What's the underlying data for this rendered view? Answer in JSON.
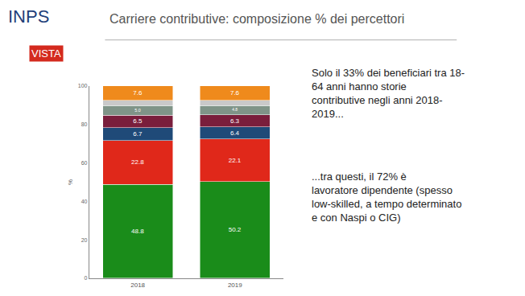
{
  "chart_data": {
    "type": "bar",
    "title": "Carriere contributive: composizione % dei percettori",
    "y_label": "%",
    "categories": [
      "2018",
      "2019"
    ],
    "stacked": true,
    "data_labels": true,
    "grid": false,
    "ylim": [
      0,
      100
    ],
    "yticks": [
      0,
      20,
      40,
      60,
      80,
      100
    ],
    "series": [
      {
        "color": "#1a8c1a",
        "values": [
          48.8,
          50.2
        ]
      },
      {
        "color": "#e0281a",
        "values": [
          22.8,
          22.1
        ]
      },
      {
        "color": "#1f4a78",
        "values": [
          6.7,
          6.4
        ]
      },
      {
        "color": "#7a1e3c",
        "values": [
          6.5,
          6.3
        ]
      },
      {
        "color": "#7f9488",
        "values": [
          5.0,
          4.8
        ],
        "value_labels": [
          "5.0",
          "4.8"
        ]
      },
      {
        "color": "#c9c9c9",
        "values": [
          2.6,
          2.6
        ]
      },
      {
        "color": "#ef8a1c",
        "values": [
          7.6,
          7.6
        ]
      }
    ],
    "annotations": [
      {
        "lines": [
          "INPS"
        ]
      },
      {
        "lines": [
          "VISTA"
        ]
      },
      {
        "lines": [
          "Solo il 33% dei beneficiari tra 18-",
          "64 anni hanno storie",
          "contributive negli anni 2018-",
          "2019..."
        ]
      },
      {
        "lines": [
          "...tra questi, il 72% è",
          "lavoratore dipendente (spesso",
          "low-skilled, a tempo determinato",
          "e con Naspi o CIG)"
        ]
      }
    ]
  }
}
